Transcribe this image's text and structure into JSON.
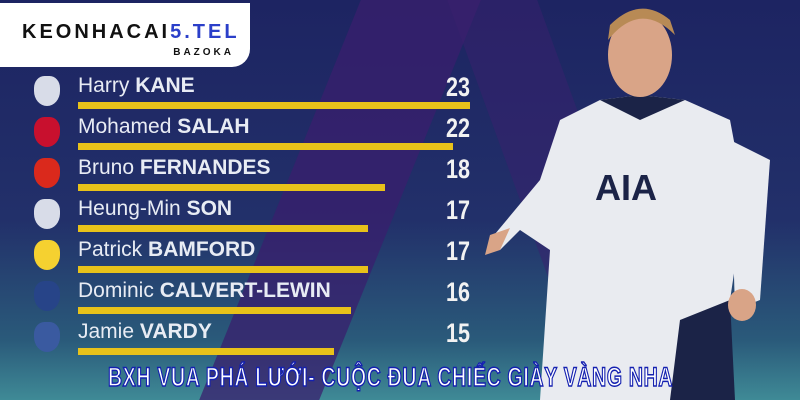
{
  "logo": {
    "brand_prefix": "KEONHACAI",
    "brand_suffix": "5.TEL",
    "sub": "BAZOKA"
  },
  "headline": "BXH VUA PHÁ LƯỚI- CUỘC ĐUA CHIẾC GIÀY VÀNG NHA",
  "players": [
    {
      "first": "Harry",
      "last": "KANE",
      "goals": "23",
      "club_color": "#d8dce8"
    },
    {
      "first": "Mohamed",
      "last": "SALAH",
      "goals": "22",
      "club_color": "#c8102e"
    },
    {
      "first": "Bruno",
      "last": "FERNANDES",
      "goals": "18",
      "club_color": "#da291c"
    },
    {
      "first": "Heung-Min",
      "last": "SON",
      "goals": "17",
      "club_color": "#d8dce8"
    },
    {
      "first": "Patrick",
      "last": "BAMFORD",
      "goals": "17",
      "club_color": "#f5d130"
    },
    {
      "first": "Dominic",
      "last": "CALVERT-LEWIN",
      "goals": "16",
      "club_color": "#274488"
    },
    {
      "first": "Jamie",
      "last": "VARDY",
      "goals": "15",
      "club_color": "#3a5aa0"
    }
  ],
  "chart_data": {
    "type": "bar",
    "orientation": "horizontal",
    "categories": [
      "Harry KANE",
      "Mohamed SALAH",
      "Bruno FERNANDES",
      "Heung-Min SON",
      "Patrick BAMFORD",
      "Dominic CALVERT-LEWIN",
      "Jamie VARDY"
    ],
    "values": [
      23,
      22,
      18,
      17,
      17,
      16,
      15
    ],
    "bar_color": "#e8c21a",
    "xlim": [
      0,
      23
    ]
  }
}
